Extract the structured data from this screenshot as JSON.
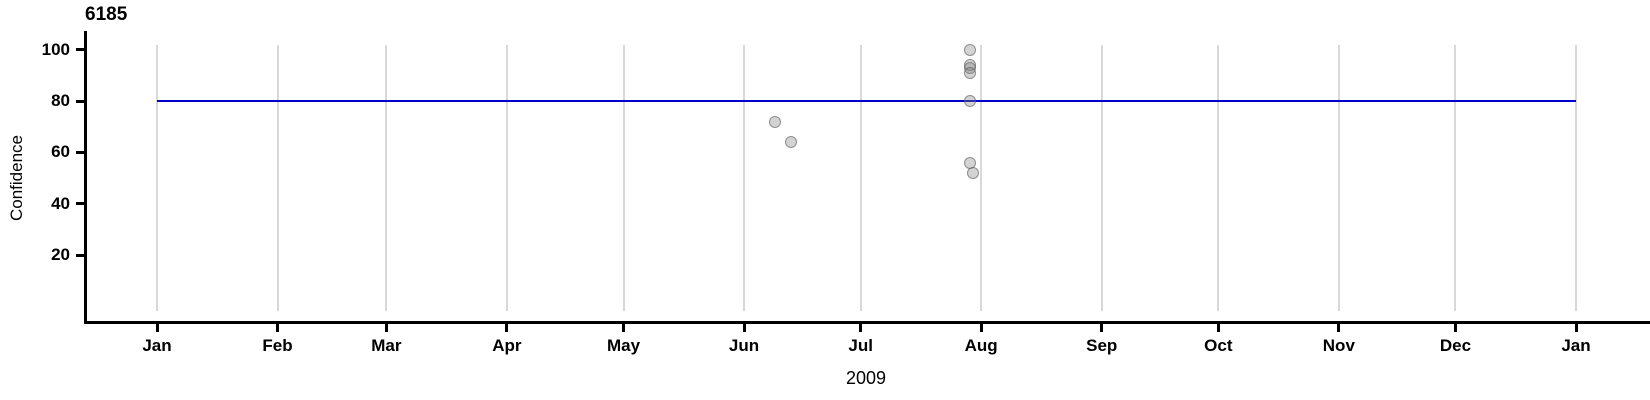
{
  "chart_data": {
    "type": "scatter",
    "title": "6185",
    "ylabel": "Confidence",
    "xlabel": "2009",
    "x_axis": {
      "tick_labels": [
        "Jan",
        "Feb",
        "Mar",
        "Apr",
        "May",
        "Jun",
        "Jul",
        "Aug",
        "Sep",
        "Oct",
        "Nov",
        "Dec",
        "Jan"
      ],
      "unit": "month of 2009",
      "gridlines": true
    },
    "y_axis": {
      "ticks": [
        20,
        40,
        60,
        80,
        100
      ],
      "range": [
        0,
        107
      ]
    },
    "reference_line": {
      "value": 80,
      "spans": "Jan to Jan",
      "color": "#0000cc"
    },
    "points": [
      {
        "date": "Jun 9",
        "day": 159,
        "confidence": 72
      },
      {
        "date": "Jun 13",
        "day": 163,
        "confidence": 64
      },
      {
        "date": "Jul 28",
        "day": 209,
        "confidence": 100
      },
      {
        "date": "Jul 28",
        "day": 209,
        "confidence": 94
      },
      {
        "date": "Jul 28",
        "day": 209,
        "confidence": 93
      },
      {
        "date": "Jul 28",
        "day": 209,
        "confidence": 91
      },
      {
        "date": "Jul 28",
        "day": 209,
        "confidence": 80
      },
      {
        "date": "Jul 28",
        "day": 209,
        "confidence": 56
      },
      {
        "date": "Jul 29",
        "day": 210,
        "confidence": 52
      }
    ],
    "legend": null,
    "colors": {
      "reference_line": "#0000cc",
      "point_fill": "#c8c8c8",
      "point_border": "#8a8a8a",
      "gridline": "#d8d8d8",
      "axis": "#000000"
    }
  }
}
